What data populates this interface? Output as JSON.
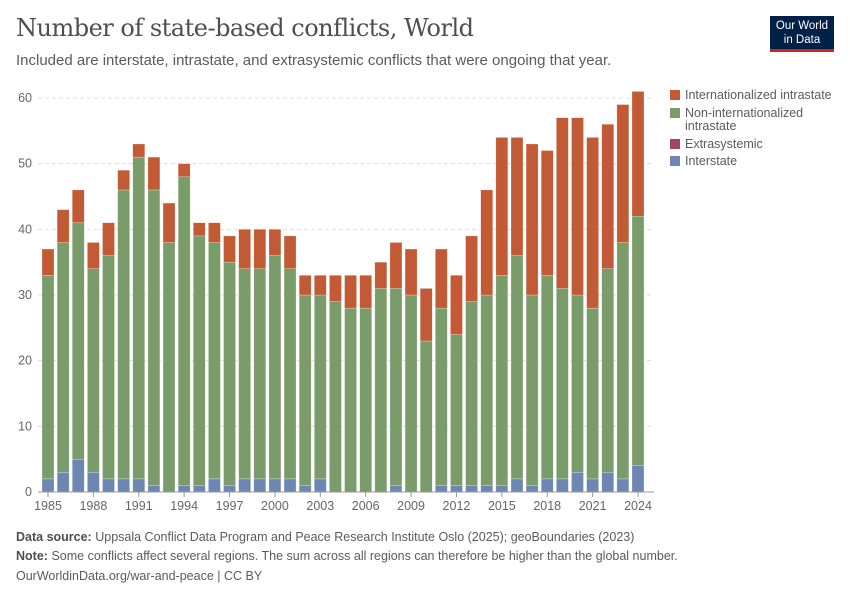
{
  "header": {
    "title": "Number of state-based conflicts, World",
    "subtitle": "Included are interstate, intrastate, and extrasystemic conflicts that were ongoing that year.",
    "logo": "Our World in Data"
  },
  "chart_data": {
    "type": "bar",
    "stacked": true,
    "title": "Number of state-based conflicts, World",
    "xlabel": "",
    "ylabel": "",
    "ylim": [
      0,
      60
    ],
    "grid": "horizontal dashed",
    "legend": "right",
    "y_ticks": [
      "0",
      "10",
      "20",
      "30",
      "40",
      "50",
      "60"
    ],
    "x_ticks": [
      "1985",
      "1988",
      "1991",
      "1994",
      "1997",
      "2000",
      "2003",
      "2006",
      "2009",
      "2012",
      "2015",
      "2018",
      "2021",
      "2024"
    ],
    "categories": [
      1985,
      1986,
      1987,
      1988,
      1989,
      1990,
      1991,
      1992,
      1993,
      1994,
      1995,
      1996,
      1997,
      1998,
      1999,
      2000,
      2001,
      2002,
      2003,
      2004,
      2005,
      2006,
      2007,
      2008,
      2009,
      2010,
      2011,
      2012,
      2013,
      2014,
      2015,
      2016,
      2017,
      2018,
      2019,
      2020,
      2021,
      2022,
      2023,
      2024
    ],
    "series": [
      {
        "name": "Interstate",
        "color": "#6d87b3",
        "values": [
          2,
          3,
          5,
          3,
          2,
          2,
          2,
          1,
          0,
          1,
          1,
          2,
          1,
          2,
          2,
          2,
          2,
          1,
          2,
          0,
          0,
          0,
          0,
          1,
          0,
          0,
          1,
          1,
          1,
          1,
          1,
          2,
          1,
          2,
          2,
          3,
          2,
          3,
          2,
          4
        ]
      },
      {
        "name": "Extrasystemic",
        "color": "#a2465c",
        "values": [
          0,
          0,
          0,
          0,
          0,
          0,
          0,
          0,
          0,
          0,
          0,
          0,
          0,
          0,
          0,
          0,
          0,
          0,
          0,
          0,
          0,
          0,
          0,
          0,
          0,
          0,
          0,
          0,
          0,
          0,
          0,
          0,
          0,
          0,
          0,
          0,
          0,
          0,
          0,
          0
        ]
      },
      {
        "name": "Non-internationalized intrastate",
        "color": "#7a9c6a",
        "values": [
          31,
          35,
          36,
          31,
          34,
          44,
          49,
          45,
          38,
          47,
          38,
          36,
          34,
          32,
          32,
          34,
          32,
          29,
          28,
          29,
          28,
          28,
          31,
          30,
          30,
          23,
          27,
          23,
          28,
          29,
          32,
          34,
          29,
          31,
          29,
          27,
          26,
          31,
          36,
          38
        ]
      },
      {
        "name": "Internationalized intrastate",
        "color": "#c15a35",
        "values": [
          4,
          5,
          5,
          4,
          5,
          3,
          2,
          5,
          6,
          2,
          2,
          3,
          4,
          6,
          6,
          4,
          5,
          3,
          3,
          4,
          5,
          5,
          4,
          7,
          7,
          8,
          9,
          9,
          10,
          16,
          21,
          18,
          23,
          19,
          26,
          27,
          26,
          22,
          21,
          19
        ]
      }
    ],
    "legend_order": [
      "Internationalized intrastate",
      "Non-internationalized intrastate",
      "Extrasystemic",
      "Interstate"
    ]
  },
  "footer": {
    "source_label": "Data source:",
    "source": "Uppsala Conflict Data Program and Peace Research Institute Oslo (2025); geoBoundaries (2023)",
    "note_label": "Note:",
    "note": "Some conflicts affect several regions. The sum across all regions can therefore be higher than the global number.",
    "url": "OurWorldinData.org/war-and-peace | CC BY"
  }
}
